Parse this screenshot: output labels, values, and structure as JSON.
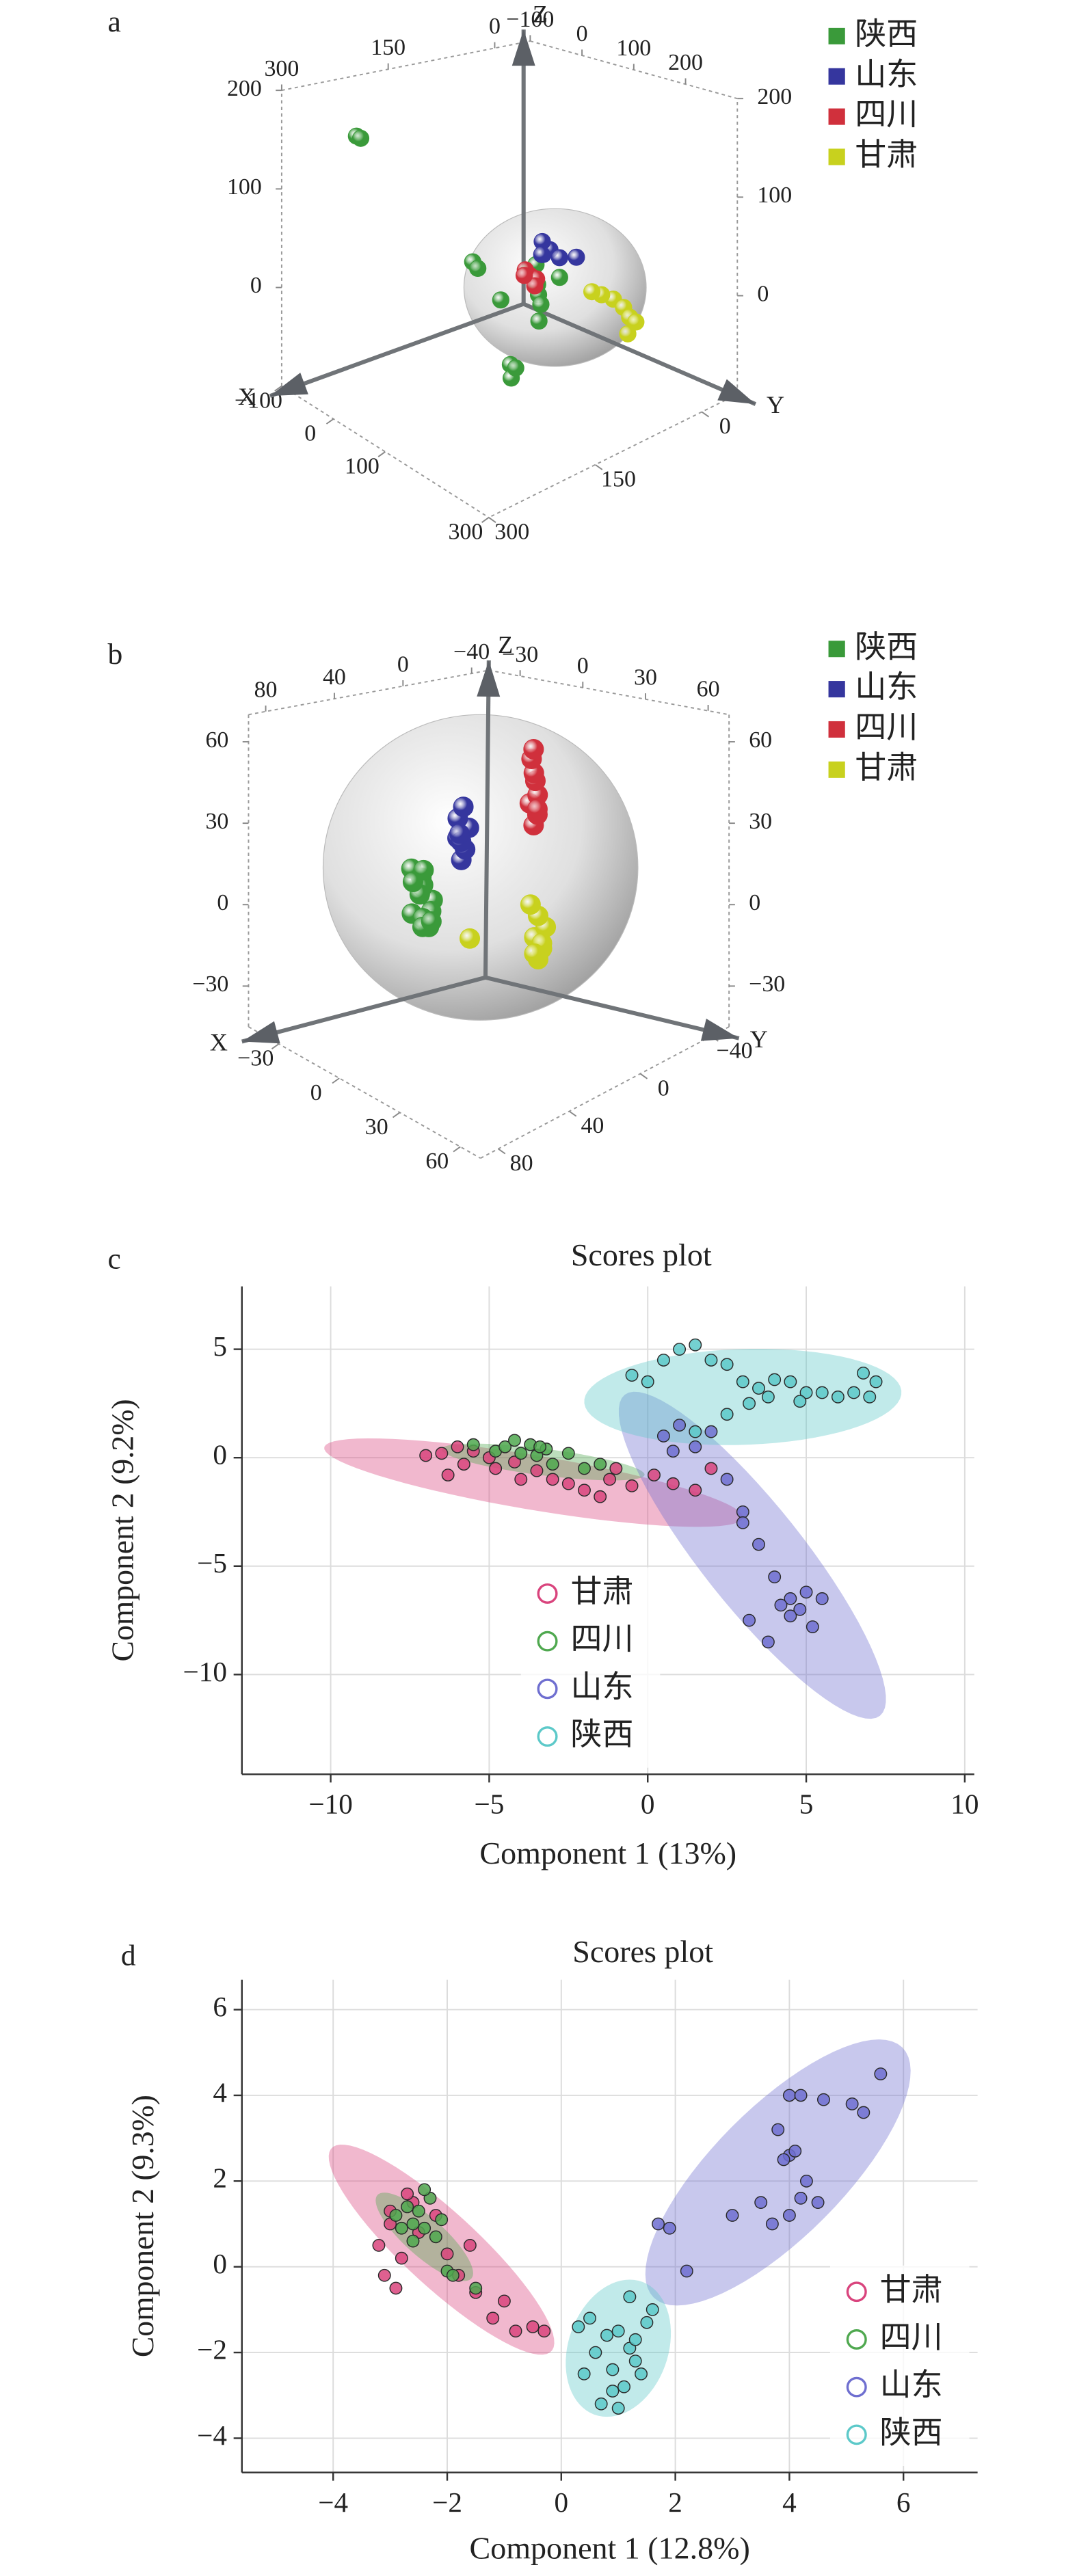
{
  "chart_data": [
    {
      "type": "scatter3d",
      "panel_label": "a",
      "xlabel": "X",
      "ylabel": "Y",
      "zlabel": "Z",
      "xlim": [
        -100,
        300
      ],
      "ylim": [
        -50,
        300
      ],
      "zlim": [
        -100,
        200
      ],
      "xticks": [
        {
          "value": -100,
          "label": "−100"
        },
        0,
        100,
        300
      ],
      "xticks_top": [
        {
          "value": -100,
          "label": "−100"
        },
        0,
        100,
        200
      ],
      "yticks": [
        0,
        150,
        300
      ],
      "yticks_top": [
        0,
        150,
        300
      ],
      "zticks": [
        0,
        100,
        200
      ],
      "zticks_right": [
        0,
        100,
        200
      ],
      "series": [
        {
          "name": "陕西",
          "color": "#3a9a3a",
          "x": [
            -9,
            -5,
            130,
            140,
            120,
            150,
            158,
            165,
            160,
            18,
            25,
            100,
            110,
            135,
            90
          ],
          "y": [
            261,
            258,
            106,
            110,
            100,
            120,
            166,
            170,
            160,
            117,
            115,
            100,
            95,
            80,
            130
          ],
          "z": [
            170,
            168,
            0,
            -5,
            5,
            -15,
            -40,
            -50,
            -45,
            0,
            -5,
            10,
            20,
            10,
            -10
          ]
        },
        {
          "name": "山东",
          "color": "#35369e",
          "x": [
            124,
            130,
            118,
            135,
            140,
            128
          ],
          "y": [
            95,
            90,
            92,
            80,
            60,
            100
          ],
          "z": [
            35,
            40,
            45,
            30,
            25,
            38
          ]
        },
        {
          "name": "四川",
          "color": "#d0303c",
          "x": [
            114,
            118,
            110,
            120,
            105
          ],
          "y": [
            106,
            100,
            110,
            104,
            108
          ],
          "z": [
            14,
            10,
            20,
            5,
            12
          ]
        },
        {
          "name": "甘肃",
          "color": "#c8d11e",
          "x": [
            184,
            190,
            195,
            175,
            200,
            170,
            205
          ],
          "y": [
            40,
            30,
            25,
            50,
            20,
            60,
            35
          ],
          "z": [
            -10,
            -20,
            -30,
            -5,
            -35,
            0,
            -40
          ]
        }
      ]
    },
    {
      "type": "scatter3d",
      "panel_label": "b",
      "xlabel": "X",
      "ylabel": "Y",
      "zlabel": "Z",
      "xlim": [
        -45,
        70
      ],
      "ylim": [
        -50,
        90
      ],
      "zlim": [
        -45,
        70
      ],
      "xticks": [
        {
          "value": -30,
          "label": "−30"
        },
        0,
        30,
        60
      ],
      "xticks_top": [
        {
          "value": -30,
          "label": "−30"
        },
        0,
        30,
        60
      ],
      "yticks": [
        {
          "value": -40,
          "label": "−40"
        },
        0,
        40,
        80
      ],
      "yticks_top": [
        {
          "value": -40,
          "label": "−40"
        },
        0,
        40,
        80
      ],
      "zticks": [
        {
          "value": -30,
          "label": "−30"
        },
        0,
        30,
        60
      ],
      "zticks_right": [
        {
          "value": -30,
          "label": "−30"
        },
        0,
        30,
        60
      ],
      "series": [
        {
          "name": "陕西",
          "color": "#3a9a3a",
          "x": [
            -10,
            -6,
            -3,
            -8,
            -4,
            -6,
            -9,
            -2,
            -5,
            -7,
            -4,
            -8,
            -1,
            -11
          ],
          "y": [
            38,
            36,
            34,
            40,
            35,
            37,
            33,
            36,
            39,
            35,
            38,
            34,
            37,
            36
          ],
          "z": [
            10,
            5,
            0,
            -5,
            -10,
            8,
            2,
            -3,
            3,
            -8,
            12,
            -12,
            -6,
            4
          ]
        },
        {
          "name": "山东",
          "color": "#35369e",
          "x": [
            -2,
            -1,
            -3,
            0,
            -2,
            -1,
            -3,
            -2
          ],
          "y": [
            19,
            18,
            20,
            17,
            21,
            19,
            18,
            20
          ],
          "z": [
            10,
            14,
            18,
            22,
            26,
            30,
            16,
            20
          ]
        },
        {
          "name": "四川",
          "color": "#d0303c",
          "x": [
            18,
            19,
            17,
            20,
            18,
            19,
            17,
            18,
            19
          ],
          "y": [
            1,
            0,
            2,
            1,
            0,
            2,
            1,
            1,
            0
          ],
          "z": [
            25,
            29,
            33,
            37,
            41,
            45,
            49,
            53,
            31
          ]
        },
        {
          "name": "甘肃",
          "color": "#c8d11e",
          "x": [
            22,
            23,
            21,
            24,
            22,
            20,
            23,
            21,
            11
          ],
          "y": [
            3,
            2,
            4,
            1,
            3,
            5,
            2,
            4,
            29
          ],
          "z": [
            -22,
            -18,
            -14,
            -10,
            -6,
            -2,
            -16,
            -20,
            -10
          ]
        }
      ]
    },
    {
      "type": "scatter",
      "panel_label": "c",
      "title": "Scores plot",
      "xlabel": "Component 1 (13%)",
      "ylabel": "Component 2 (9.2%)",
      "xlim": [
        -12.8,
        10.3
      ],
      "ylim": [
        -14.6,
        7.9
      ],
      "xticks": [
        {
          "value": -10,
          "label": "−10"
        },
        {
          "value": -5,
          "label": "−5"
        },
        0,
        5,
        10
      ],
      "yticks": [
        {
          "value": -10,
          "label": "−10"
        },
        {
          "value": -5,
          "label": "−5"
        },
        0,
        5
      ],
      "grid": true,
      "legend": "lower center",
      "series": [
        {
          "name": "甘肃",
          "color": "#d9447d",
          "x": [
            -6.5,
            -6,
            -5.8,
            -6.3,
            -5.5,
            -5,
            -4.8,
            -4.2,
            -3.5,
            -3,
            -2.5,
            -2,
            -1.5,
            -1.2,
            -0.5,
            0.2,
            0.8,
            1.5,
            2,
            -1,
            -7,
            -4
          ],
          "y": [
            0.2,
            0.5,
            -0.3,
            -0.8,
            0.3,
            0,
            -0.5,
            -0.2,
            -0.6,
            -1,
            -1.2,
            -1.5,
            -1.8,
            -1,
            -1.3,
            -0.8,
            -1.2,
            -1.5,
            -0.5,
            -0.5,
            0.1,
            -1
          ],
          "ellipse": {
            "center": [
              -3.6,
              -1.15
            ],
            "axis1": [
              6.6,
              -1.65
            ],
            "axis2": [
              0.3,
              1.2
            ]
          }
        },
        {
          "name": "四川",
          "color": "#4fa84f",
          "x": [
            -5.5,
            -4.8,
            -4.5,
            -4,
            -3.7,
            -3.5,
            -3.2,
            -3,
            -2.5,
            -2,
            -1.5,
            -4.2,
            -3.4
          ],
          "y": [
            0.6,
            0.3,
            0.5,
            0.2,
            0.6,
            0.1,
            0.4,
            -0.3,
            0.2,
            -0.5,
            -0.3,
            0.8,
            0.5
          ],
          "ellipse": {
            "center": [
              -3.3,
              -0.2
            ],
            "axis1": [
              3.2,
              -0.6
            ],
            "axis2": [
              0.1,
              0.6
            ]
          }
        },
        {
          "name": "山东",
          "color": "#6f6fd0",
          "x": [
            0.5,
            0.8,
            1,
            1.5,
            2,
            2.5,
            3,
            3.5,
            4,
            4.5,
            5,
            4.8,
            4.2,
            5.5,
            3.2,
            3.8,
            4.5,
            5.2,
            3
          ],
          "y": [
            1,
            0.3,
            1.5,
            0.5,
            1.2,
            -1,
            -2.5,
            -4,
            -5.5,
            -6.5,
            -6.2,
            -7,
            -6.8,
            -6.5,
            -7.5,
            -8.5,
            -7.3,
            -7.8,
            -3
          ],
          "ellipse": {
            "center": [
              3.3,
              -4.5
            ],
            "axis1": [
              3.9,
              -7.5
            ],
            "axis2": [
              1.6,
              0.8
            ]
          }
        },
        {
          "name": "陕西",
          "color": "#5cc9c9",
          "x": [
            1,
            1.5,
            2,
            2.5,
            3,
            3.5,
            4,
            4.5,
            5,
            5.5,
            6,
            6.5,
            7,
            7.2,
            6.8,
            3.2,
            2.5,
            1.5,
            0,
            -0.5,
            0.5,
            3.8,
            4.8
          ],
          "y": [
            5,
            5.2,
            4.5,
            4.3,
            3.5,
            3.2,
            3.6,
            3.5,
            3,
            3,
            2.8,
            3,
            2.8,
            3.5,
            3.9,
            2.5,
            2,
            1.2,
            3.5,
            3.8,
            4.5,
            2.8,
            2.6
          ],
          "ellipse": {
            "center": [
              3,
              2.8
            ],
            "axis1": [
              5,
              0.3
            ],
            "axis2": [
              -0.2,
              2.2
            ]
          }
        }
      ]
    },
    {
      "type": "scatter",
      "panel_label": "d",
      "title": "Scores plot",
      "xlabel": "Component 1 (12.8%)",
      "ylabel": "Component 2 (9.3%)",
      "xlim": [
        -5.6,
        7.3
      ],
      "ylim": [
        -4.8,
        6.7
      ],
      "xticks": [
        {
          "value": -4,
          "label": "−4"
        },
        {
          "value": -2,
          "label": "−2"
        },
        0,
        2,
        4,
        6
      ],
      "yticks": [
        {
          "value": -4,
          "label": "−4"
        },
        {
          "value": -2,
          "label": "−2"
        },
        0,
        2,
        4,
        6
      ],
      "grid": true,
      "legend": "lower right",
      "series": [
        {
          "name": "甘肃",
          "color": "#d9447d",
          "x": [
            -3.2,
            -3,
            -2.9,
            -3.1,
            -2.8,
            -2.6,
            -2.5,
            -2.2,
            -2,
            -1.8,
            -1.5,
            -1.2,
            -1,
            -0.8,
            -0.5,
            -0.3,
            -1.6,
            -2.7,
            -3
          ],
          "y": [
            0.5,
            1,
            -0.5,
            -0.2,
            0.2,
            1.5,
            0.8,
            1.2,
            0.3,
            -0.2,
            -0.6,
            -1.2,
            -0.8,
            -1.5,
            -1.4,
            -1.5,
            0.5,
            1.7,
            1.3
          ],
          "ellipse": {
            "center": [
              -2.1,
              0.4
            ],
            "axis1": [
              1.9,
              -2.4
            ],
            "axis2": [
              0.55,
              0.5
            ]
          }
        },
        {
          "name": "四川",
          "color": "#4fa84f",
          "x": [
            -2.9,
            -2.7,
            -2.6,
            -2.5,
            -2.4,
            -2.3,
            -2.2,
            -2.1,
            -2.8,
            -2,
            -1.9,
            -1.5,
            -2.4,
            -2.6
          ],
          "y": [
            1.2,
            1.4,
            1,
            1.3,
            0.9,
            1.6,
            0.7,
            1.1,
            0.9,
            -0.1,
            -0.2,
            -0.5,
            1.8,
            0.6
          ],
          "ellipse": {
            "center": [
              -2.4,
              0.7
            ],
            "axis1": [
              0.8,
              -1
            ],
            "axis2": [
              0.3,
              0.25
            ]
          }
        },
        {
          "name": "山东",
          "color": "#6f6fd0",
          "x": [
            1.7,
            1.9,
            2.2,
            3,
            3.5,
            3.7,
            4,
            4,
            4.1,
            3.9,
            4.3,
            4.5,
            3.8,
            4,
            4.2,
            4.6,
            5.1,
            5.3,
            5.6,
            4.2
          ],
          "y": [
            1,
            0.9,
            -0.1,
            1.2,
            1.5,
            1,
            1.2,
            2.6,
            2.7,
            2.5,
            2,
            1.5,
            3.2,
            4,
            4,
            3.9,
            3.8,
            3.6,
            4.5,
            1.6
          ],
          "ellipse": {
            "center": [
              3.8,
              2.2
            ],
            "axis1": [
              2.1,
              3
            ],
            "axis2": [
              1,
              -0.8
            ]
          }
        },
        {
          "name": "陕西",
          "color": "#5cc9c9",
          "x": [
            0.3,
            0.5,
            0.6,
            0.8,
            0.9,
            1,
            1.1,
            1.2,
            1.3,
            1.4,
            1.5,
            1.6,
            0.7,
            1,
            1.2,
            0.9,
            1.3,
            0.4
          ],
          "y": [
            -1.4,
            -1.2,
            -2,
            -1.6,
            -2.4,
            -1.5,
            -2.8,
            -1.9,
            -2.2,
            -2.5,
            -1.3,
            -1,
            -3.2,
            -3.3,
            -0.7,
            -2.9,
            -1.7,
            -2.5
          ],
          "ellipse": {
            "center": [
              1,
              -1.9
            ],
            "axis1": [
              0.2,
              1.6
            ],
            "axis2": [
              0.9,
              0
            ]
          }
        }
      ]
    }
  ]
}
